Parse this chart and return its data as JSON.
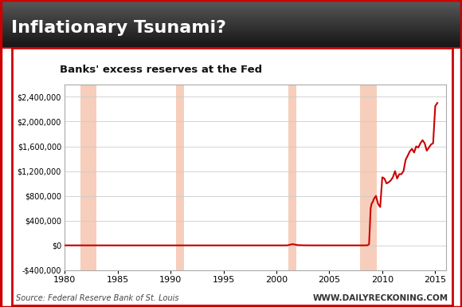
{
  "title_banner": "Inflationary Tsunami?",
  "subtitle": "Banks' excess reserves at the Fed",
  "source_text": "Source: Federal Reserve Bank of St. Louis",
  "website_text": "WWW.DAILYRECKONING.COM",
  "banner_bg_top": "#555555",
  "banner_bg_bottom": "#111111",
  "banner_text_color": "#ffffff",
  "chart_bg": "#ffffff",
  "outer_bg": "#ffffff",
  "line_color": "#cc0000",
  "recession_color": "#f5c6b0",
  "recession_alpha": 0.85,
  "border_color": "#cc0000",
  "grid_color": "#cccccc",
  "recessions": [
    [
      1981.5,
      1983.0
    ],
    [
      1990.5,
      1991.3
    ],
    [
      2001.1,
      2001.9
    ],
    [
      2007.9,
      2009.5
    ]
  ],
  "xlim": [
    1980,
    2016
  ],
  "ylim": [
    -400000,
    2600000
  ],
  "yticks": [
    -400000,
    0,
    400000,
    800000,
    1200000,
    1600000,
    2000000,
    2400000
  ],
  "xticks": [
    1980,
    1985,
    1990,
    1995,
    2000,
    2005,
    2010,
    2015
  ],
  "data_x": [
    1980.0,
    1980.5,
    1981.0,
    1981.5,
    1982.0,
    1982.5,
    1983.0,
    1983.5,
    1984.0,
    1984.5,
    1985.0,
    1985.5,
    1986.0,
    1986.5,
    1987.0,
    1987.5,
    1988.0,
    1988.5,
    1989.0,
    1989.5,
    1990.0,
    1990.5,
    1991.0,
    1991.5,
    1992.0,
    1992.5,
    1993.0,
    1993.5,
    1994.0,
    1994.5,
    1995.0,
    1995.5,
    1996.0,
    1996.5,
    1997.0,
    1997.5,
    1998.0,
    1998.5,
    1999.0,
    1999.5,
    2000.0,
    2000.5,
    2001.0,
    2001.2,
    2001.5,
    2001.8,
    2002.0,
    2002.5,
    2003.0,
    2003.5,
    2004.0,
    2004.5,
    2005.0,
    2005.5,
    2006.0,
    2006.5,
    2007.0,
    2007.5,
    2007.9,
    2008.0,
    2008.3,
    2008.6,
    2008.75,
    2008.9,
    2009.0,
    2009.1,
    2009.2,
    2009.4,
    2009.6,
    2009.8,
    2010.0,
    2010.2,
    2010.4,
    2010.6,
    2010.8,
    2011.0,
    2011.2,
    2011.4,
    2011.6,
    2011.8,
    2012.0,
    2012.2,
    2012.4,
    2012.6,
    2012.8,
    2013.0,
    2013.2,
    2013.4,
    2013.6,
    2013.8,
    2014.0,
    2014.2,
    2014.4,
    2014.6,
    2014.8,
    2015.0,
    2015.2
  ],
  "data_y": [
    800,
    700,
    700,
    600,
    500,
    450,
    400,
    400,
    400,
    400,
    350,
    300,
    300,
    300,
    300,
    300,
    300,
    300,
    300,
    300,
    300,
    300,
    300,
    300,
    300,
    300,
    300,
    300,
    300,
    300,
    300,
    300,
    300,
    300,
    300,
    300,
    300,
    300,
    300,
    300,
    300,
    300,
    300,
    8000,
    20000,
    12000,
    5000,
    2000,
    1000,
    800,
    600,
    500,
    400,
    400,
    400,
    400,
    400,
    400,
    400,
    400,
    600,
    2000,
    20000,
    600000,
    680000,
    700000,
    750000,
    800000,
    670000,
    620000,
    1100000,
    1080000,
    1000000,
    1020000,
    1050000,
    1100000,
    1200000,
    1080000,
    1150000,
    1150000,
    1200000,
    1380000,
    1450000,
    1520000,
    1560000,
    1500000,
    1600000,
    1580000,
    1650000,
    1700000,
    1650000,
    1530000,
    1580000,
    1630000,
    1650000,
    2250000,
    2300000
  ]
}
